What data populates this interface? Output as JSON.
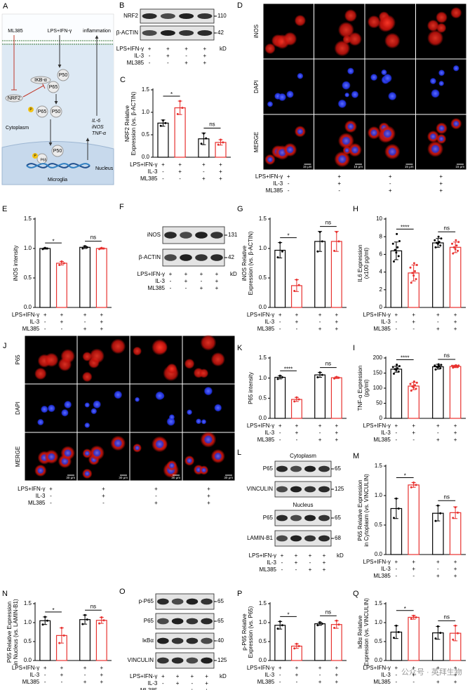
{
  "conditions": {
    "names": [
      "LPS+IFN-γ",
      "IL-3",
      "ML385"
    ],
    "signs": [
      [
        "+",
        "+",
        "+",
        "+"
      ],
      [
        "-",
        "+",
        "-",
        "+"
      ],
      [
        "-",
        "-",
        "+",
        "+"
      ]
    ]
  },
  "diagram": {
    "panel": "A",
    "ml385": "ML385",
    "stimulus": "LPS+IFN-γ",
    "inflammation": "inflammation",
    "ikb": "IKB-α",
    "p50_top": "P50",
    "p65_top": "P65",
    "nrf2": "NRF2",
    "phospho": "P",
    "p65_mid": "P65",
    "p50_mid": "P50",
    "cytoplasm": "Cytoplasm",
    "genes": [
      "IL-6",
      "iNOS",
      "TNF-α"
    ],
    "nucleus": "Nucleus",
    "p50_bot": "P50",
    "p65_bot": "P65",
    "cell": "Microglia"
  },
  "blots": [
    {
      "panel": "B",
      "unit": "kD",
      "sections": [
        {
          "rows": [
            {
              "name": "NRF2",
              "kd": 110
            },
            {
              "name": "β-ACTIN",
              "kd": 42
            }
          ]
        }
      ]
    },
    {
      "panel": "F",
      "unit": "kD",
      "sections": [
        {
          "rows": [
            {
              "name": "iNOS",
              "kd": 131
            },
            {
              "name": "β-ACTIN",
              "kd": 42
            }
          ]
        }
      ]
    },
    {
      "panel": "L",
      "unit": "kD",
      "sections": [
        {
          "header": "Cytoplasm",
          "rows": [
            {
              "name": "P65",
              "kd": 65
            },
            {
              "name": "VINCULIN",
              "kd": 125
            }
          ]
        },
        {
          "header": "Nucleus",
          "rows": [
            {
              "name": "P65",
              "kd": 65
            },
            {
              "name": "LAMIN-B1",
              "kd": 68
            }
          ]
        }
      ]
    },
    {
      "panel": "O",
      "unit": "kD",
      "sections": [
        {
          "rows": [
            {
              "name": "p-P65",
              "kd": 65
            },
            {
              "name": "P65",
              "kd": 65
            },
            {
              "name": "IκBα",
              "kd": 40
            },
            {
              "name": "VINCULIN",
              "kd": 125
            }
          ]
        }
      ]
    }
  ],
  "micrographs": [
    {
      "panel": "D",
      "rows": [
        "iNOS",
        "DAPI",
        "MERGE"
      ],
      "scale": "15 μm"
    },
    {
      "panel": "J",
      "rows": [
        "P65",
        "DAPI",
        "MERGE"
      ],
      "scale": "30 μm"
    }
  ],
  "chart_data": [
    {
      "type": "bar",
      "panel": "C",
      "ylabel": [
        "NRF2 Relative",
        "Expression (vs. β-ACTIN)"
      ],
      "ylim": [
        0,
        1.5
      ],
      "yticks": [
        {
          "value": 0,
          "label": "0.0"
        },
        0.5,
        {
          "value": 1,
          "label": "1.0"
        },
        1.5
      ],
      "colors": [
        "#000000",
        "#e8312f",
        "#000000",
        "#e8312f"
      ],
      "values": [
        0.76,
        1.1,
        0.41,
        0.33
      ],
      "errors": [
        0.07,
        0.15,
        0.13,
        0.06
      ],
      "points": [
        [
          0.7,
          0.76,
          0.82
        ],
        [
          0.96,
          1.1,
          1.25
        ],
        [
          0.3,
          0.42,
          0.53
        ],
        [
          0.28,
          0.33,
          0.39
        ]
      ],
      "annotations": [
        "*",
        "ns"
      ]
    },
    {
      "type": "bar",
      "panel": "E",
      "ylabel": [
        "iNOS intensity"
      ],
      "ylim": [
        0,
        1.5
      ],
      "yticks": [
        {
          "value": 0,
          "label": "0.0"
        },
        0.5,
        {
          "value": 1,
          "label": "1.0"
        },
        1.5
      ],
      "colors": [
        "#000000",
        "#e8312f",
        "#000000",
        "#e8312f"
      ],
      "values": [
        1.0,
        0.75,
        1.02,
        1.0
      ],
      "errors": [
        0.01,
        0.03,
        0.02,
        0.01
      ],
      "points": [
        [
          0.99,
          1.0,
          1.01
        ],
        [
          0.72,
          0.75,
          0.78
        ],
        [
          1.0,
          1.02,
          1.04
        ],
        [
          0.99,
          1.0,
          1.01
        ]
      ],
      "annotations": [
        "*",
        "ns"
      ]
    },
    {
      "type": "bar",
      "panel": "G",
      "ylabel": [
        "iNOS Relative",
        "Expression (vs. β-ACTIN)"
      ],
      "ylim": [
        0,
        1.5
      ],
      "yticks": [
        {
          "value": 0,
          "label": "0.0"
        },
        0.5,
        {
          "value": 1,
          "label": "1.0"
        },
        1.5
      ],
      "colors": [
        "#000000",
        "#e8312f",
        "#000000",
        "#e8312f"
      ],
      "values": [
        0.97,
        0.37,
        1.12,
        1.12
      ],
      "errors": [
        0.13,
        0.1,
        0.17,
        0.17
      ],
      "points": [
        [
          0.85,
          0.95,
          1.1
        ],
        [
          0.28,
          0.38,
          0.47
        ],
        [
          0.95,
          1.12,
          1.28
        ],
        [
          0.96,
          1.12,
          1.28
        ]
      ],
      "annotations": [
        "*",
        "ns"
      ]
    },
    {
      "type": "bar",
      "panel": "H",
      "ylabel": [
        "IL6 Expression",
        "(x100 pg/ml)"
      ],
      "ylim": [
        0,
        10
      ],
      "yticks": [
        0,
        2,
        4,
        6,
        8,
        10
      ],
      "colors": [
        "#000000",
        "#e8312f",
        "#000000",
        "#e8312f"
      ],
      "values": [
        6.4,
        3.9,
        7.3,
        6.8
      ],
      "errors": [
        1.0,
        0.9,
        0.5,
        0.6
      ],
      "points": [
        [
          5.2,
          5.8,
          6.2,
          6.5,
          6.8,
          7.2,
          7.5,
          8.3
        ],
        [
          2.8,
          3.2,
          3.6,
          3.9,
          4.1,
          4.5,
          4.8,
          5.0
        ],
        [
          6.8,
          7.0,
          7.2,
          7.3,
          7.4,
          7.6,
          7.8,
          8.0
        ],
        [
          6.1,
          6.4,
          6.6,
          6.8,
          7.0,
          7.2,
          7.4,
          7.6
        ]
      ],
      "annotations": [
        "****",
        "ns"
      ]
    },
    {
      "type": "bar",
      "panel": "K",
      "ylabel": [
        "P65 intensity"
      ],
      "ylim": [
        0,
        1.5
      ],
      "yticks": [
        {
          "value": 0,
          "label": "0.0"
        },
        0.5,
        {
          "value": 1,
          "label": "1.0"
        },
        1.5
      ],
      "colors": [
        "#000000",
        "#e8312f",
        "#000000",
        "#e8312f"
      ],
      "values": [
        1.02,
        0.47,
        1.08,
        1.01
      ],
      "errors": [
        0.04,
        0.05,
        0.06,
        0.02
      ],
      "points": [
        [
          0.98,
          1.02,
          1.06
        ],
        [
          0.42,
          0.47,
          0.52
        ],
        [
          1.02,
          1.08,
          1.14
        ],
        [
          0.99,
          1.01,
          1.03
        ]
      ],
      "annotations": [
        "****",
        "ns"
      ]
    },
    {
      "type": "bar",
      "panel": "I",
      "ylabel": [
        "TNF-α Expression",
        "(pg/ml)"
      ],
      "ylim": [
        0,
        200
      ],
      "yticks": [
        0,
        50,
        100,
        150,
        200
      ],
      "colors": [
        "#000000",
        "#e8312f",
        "#000000",
        "#e8312f"
      ],
      "values": [
        163,
        107,
        171,
        172
      ],
      "errors": [
        10,
        12,
        8,
        4
      ],
      "points": [
        [
          148,
          155,
          160,
          163,
          166,
          170,
          173,
          178
        ],
        [
          92,
          98,
          102,
          106,
          110,
          114,
          118,
          122
        ],
        [
          162,
          166,
          169,
          171,
          173,
          175,
          177,
          179
        ],
        [
          168,
          170,
          171,
          172,
          173,
          174,
          175,
          176
        ]
      ],
      "annotations": [
        "****",
        "ns"
      ]
    },
    {
      "type": "bar",
      "panel": "M",
      "ylabel": [
        "P65 Relative Expression",
        "in Cytoplasm (vs. VINCULIN)"
      ],
      "ylim": [
        0,
        1.5
      ],
      "yticks": [
        {
          "value": 0,
          "label": "0.0"
        },
        0.5,
        {
          "value": 1,
          "label": "1.0"
        },
        1.5
      ],
      "colors": [
        "#000000",
        "#e8312f",
        "#000000",
        "#e8312f"
      ],
      "values": [
        0.78,
        1.18,
        0.7,
        0.71
      ],
      "errors": [
        0.17,
        0.04,
        0.13,
        0.1
      ],
      "points": [
        [
          0.62,
          0.78,
          0.95
        ],
        [
          1.14,
          1.18,
          1.22
        ],
        [
          0.57,
          0.7,
          0.83
        ],
        [
          0.62,
          0.71,
          0.8
        ]
      ],
      "annotations": [
        "*",
        "ns"
      ]
    },
    {
      "type": "bar",
      "panel": "N",
      "ylabel": [
        "P65 Relative Expression",
        "in Nucleus (vs. LAMIN-B1)"
      ],
      "ylim": [
        0,
        1.5
      ],
      "yticks": [
        {
          "value": 0,
          "label": "0.0"
        },
        0.5,
        {
          "value": 1,
          "label": "1.0"
        },
        1.5
      ],
      "colors": [
        "#000000",
        "#e8312f",
        "#000000",
        "#e8312f"
      ],
      "values": [
        1.05,
        0.66,
        1.08,
        1.06
      ],
      "errors": [
        0.1,
        0.2,
        0.12,
        0.08
      ],
      "points": [
        [
          0.95,
          1.05,
          1.15
        ],
        [
          0.46,
          0.66,
          0.86
        ],
        [
          0.96,
          1.08,
          1.2
        ],
        [
          0.98,
          1.06,
          1.14
        ]
      ],
      "annotations": [
        "*",
        "ns"
      ]
    },
    {
      "type": "bar",
      "panel": "P",
      "ylabel": [
        "p-P65 Relative",
        "Expression (vs. P65)"
      ],
      "ylim": [
        0,
        1.5
      ],
      "yticks": [
        {
          "value": 0,
          "label": "0.0"
        },
        0.5,
        {
          "value": 1,
          "label": "1.0"
        },
        1.5
      ],
      "colors": [
        "#000000",
        "#e8312f",
        "#000000",
        "#e8312f"
      ],
      "values": [
        0.93,
        0.38,
        0.97,
        0.95
      ],
      "errors": [
        0.1,
        0.06,
        0.04,
        0.1
      ],
      "points": [
        [
          0.84,
          0.93,
          1.03
        ],
        [
          0.32,
          0.38,
          0.44
        ],
        [
          0.93,
          0.97,
          1.01
        ],
        [
          0.86,
          0.95,
          1.05
        ]
      ],
      "annotations": [
        "*",
        "ns"
      ]
    },
    {
      "type": "bar",
      "panel": "Q",
      "ylabel": [
        "IκBα Relative",
        "Expression (vs. VINCULIN)"
      ],
      "ylim": [
        0,
        1.5
      ],
      "yticks": [
        {
          "value": 0,
          "label": "0.0"
        },
        0.5,
        {
          "value": 1,
          "label": "1.0"
        },
        1.5
      ],
      "colors": [
        "#000000",
        "#e8312f",
        "#000000",
        "#e8312f"
      ],
      "values": [
        0.75,
        1.14,
        0.73,
        0.72
      ],
      "errors": [
        0.17,
        0.05,
        0.17,
        0.2
      ],
      "points": [
        [
          0.6,
          0.75,
          0.92
        ],
        [
          1.1,
          1.14,
          1.18
        ],
        [
          0.58,
          0.73,
          0.9
        ],
        [
          0.55,
          0.72,
          0.92
        ]
      ],
      "annotations": [
        "*",
        "ns"
      ]
    }
  ],
  "watermark": "公众号 · 英拜生物"
}
